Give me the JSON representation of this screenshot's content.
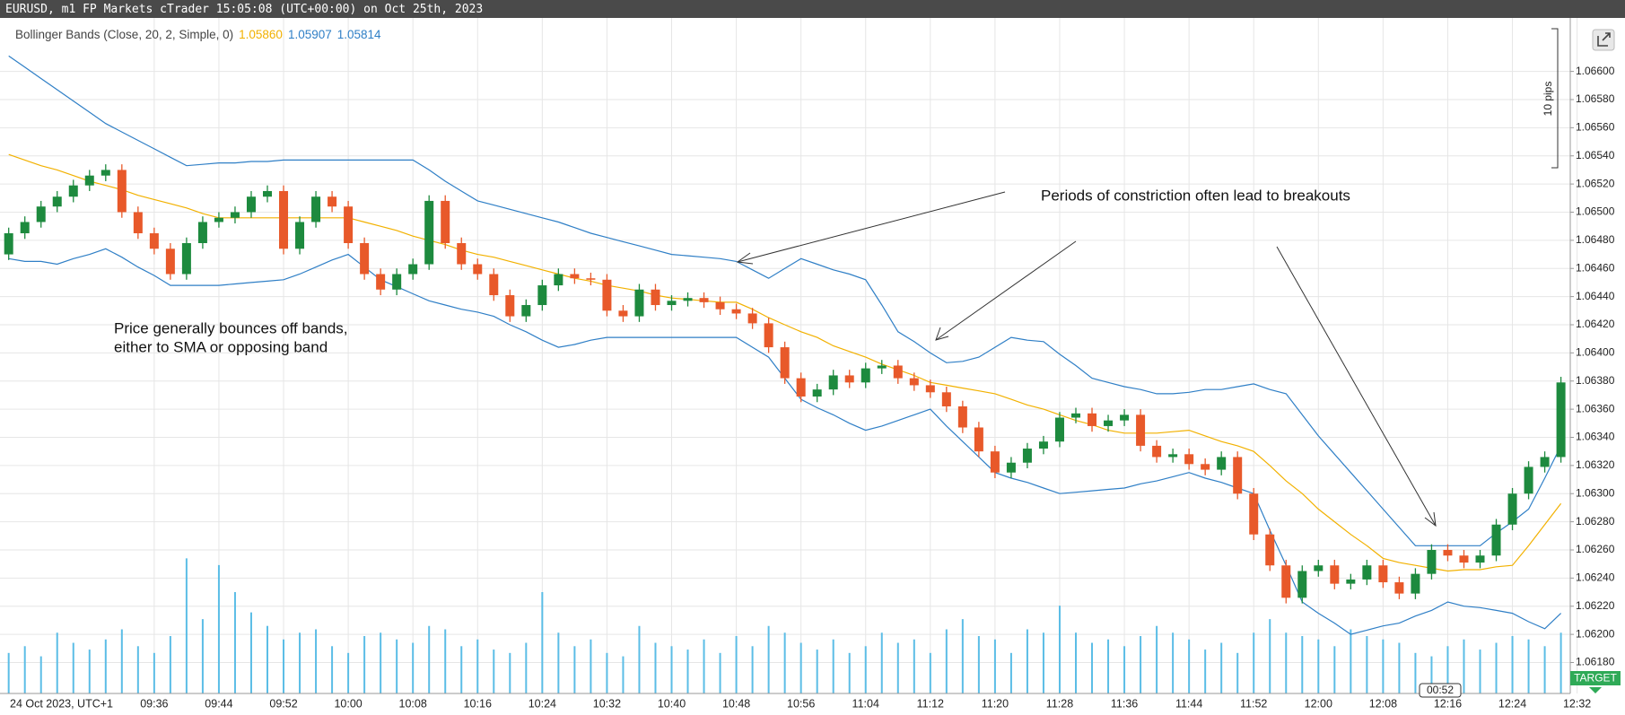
{
  "header": {
    "title": "EURUSD, m1 FP Markets cTrader 15:05:08 (UTC+00:00) on Oct 25th, 2023"
  },
  "chart_data": {
    "type": "candlestick",
    "categories": [
      null,
      null,
      null,
      null,
      null,
      "24 Oct 2023, UTC+1",
      null,
      null,
      null,
      "09:36",
      null,
      null,
      null,
      "09:44",
      null,
      null,
      null,
      "09:52",
      null,
      null,
      null,
      "10:00",
      null,
      null,
      null,
      "10:08",
      null,
      null,
      null,
      "10:16",
      null,
      null,
      null,
      "10:24",
      null,
      null,
      null,
      "10:32",
      null,
      null,
      null,
      "10:40",
      null,
      null,
      null,
      "10:48",
      null,
      null,
      null,
      "10:56",
      null,
      null,
      null,
      "11:04",
      null,
      null,
      null,
      "11:12",
      null,
      null,
      null,
      "11:20",
      null,
      null,
      null,
      "11:28",
      null,
      null,
      null,
      "11:36",
      null,
      null,
      null,
      "11:44",
      null,
      null,
      null,
      "11:52",
      null,
      null,
      null,
      "12:00",
      null,
      null,
      null,
      "12:08",
      null,
      null,
      null,
      "12:16",
      null,
      null,
      null,
      "12:24",
      null,
      null,
      null,
      "12:32"
    ],
    "open": [
      1.0647,
      1.06485,
      1.06493,
      1.06504,
      1.06511,
      1.06519,
      1.06526,
      1.0653,
      1.065,
      1.06485,
      1.06474,
      1.06456,
      1.06478,
      1.06493,
      1.06496,
      1.065,
      1.06511,
      1.06515,
      1.06474,
      1.06493,
      1.06511,
      1.06504,
      1.06478,
      1.06456,
      1.06445,
      1.06456,
      1.06463,
      1.06508,
      1.06478,
      1.06463,
      1.06456,
      1.06441,
      1.06426,
      1.06434,
      1.06448,
      1.06456,
      1.06453,
      1.06452,
      1.0643,
      1.06426,
      1.06445,
      1.06434,
      1.06437,
      1.06439,
      1.06436,
      1.06431,
      1.06428,
      1.06421,
      1.06404,
      1.06382,
      1.06369,
      1.06374,
      1.06384,
      1.06379,
      1.06389,
      1.06391,
      1.06382,
      1.06377,
      1.06372,
      1.06362,
      1.06347,
      1.0633,
      1.06315,
      1.06322,
      1.06332,
      1.06337,
      1.06354,
      1.06357,
      1.06348,
      1.06352,
      1.06356,
      1.06334,
      1.06326,
      1.06328,
      1.06321,
      1.06317,
      1.06326,
      1.063,
      1.06271,
      1.06249,
      1.06226,
      1.06245,
      1.06249,
      1.06236,
      1.06239,
      1.06249,
      1.06237,
      1.06229,
      1.06243,
      1.0626,
      1.06256,
      1.06251,
      1.06256,
      1.06278,
      1.063,
      1.06319,
      1.06326,
      null
    ],
    "high": [
      1.06489,
      1.06497,
      1.06508,
      1.06515,
      1.06523,
      1.0653,
      1.06534,
      1.06534,
      1.06504,
      1.06489,
      1.06478,
      1.06482,
      1.06497,
      1.065,
      1.06504,
      1.06515,
      1.06519,
      1.06519,
      1.06497,
      1.06515,
      1.06515,
      1.06508,
      1.06482,
      1.0646,
      1.0646,
      1.06467,
      1.06512,
      1.06512,
      1.06482,
      1.06467,
      1.0646,
      1.06445,
      1.06438,
      1.06452,
      1.0646,
      1.0646,
      1.06457,
      1.06456,
      1.06434,
      1.06449,
      1.06449,
      1.06441,
      1.06443,
      1.06443,
      1.0644,
      1.06435,
      1.06432,
      1.06425,
      1.06408,
      1.06386,
      1.06378,
      1.06388,
      1.06388,
      1.06393,
      1.06395,
      1.06395,
      1.06386,
      1.06381,
      1.06376,
      1.06366,
      1.06351,
      1.06334,
      1.06326,
      1.06336,
      1.06341,
      1.06358,
      1.06361,
      1.06361,
      1.06356,
      1.0636,
      1.0636,
      1.06338,
      1.06332,
      1.06332,
      1.06325,
      1.0633,
      1.0633,
      1.06304,
      1.06275,
      1.06253,
      1.06249,
      1.06253,
      1.06253,
      1.06243,
      1.06253,
      1.06253,
      1.06241,
      1.06247,
      1.06264,
      1.06264,
      1.0626,
      1.0626,
      1.06282,
      1.06304,
      1.06323,
      1.0633,
      1.06383,
      null
    ],
    "low": [
      1.06466,
      1.06481,
      1.06489,
      1.065,
      1.06507,
      1.06515,
      1.06522,
      1.06496,
      1.06481,
      1.0647,
      1.06452,
      1.06452,
      1.06474,
      1.06489,
      1.06492,
      1.06496,
      1.06507,
      1.0647,
      1.0647,
      1.06489,
      1.065,
      1.06474,
      1.06452,
      1.06441,
      1.06441,
      1.06452,
      1.06459,
      1.06474,
      1.06459,
      1.06452,
      1.06437,
      1.06422,
      1.06422,
      1.0643,
      1.06444,
      1.06449,
      1.06448,
      1.06426,
      1.06422,
      1.06422,
      1.0643,
      1.0643,
      1.06433,
      1.06432,
      1.06427,
      1.06424,
      1.06417,
      1.064,
      1.06378,
      1.06365,
      1.06365,
      1.0637,
      1.06375,
      1.06375,
      1.06385,
      1.06378,
      1.06373,
      1.06368,
      1.06358,
      1.06343,
      1.06326,
      1.06311,
      1.06311,
      1.06318,
      1.06328,
      1.06333,
      1.0635,
      1.06344,
      1.06344,
      1.06348,
      1.0633,
      1.06322,
      1.06322,
      1.06317,
      1.06313,
      1.06313,
      1.06296,
      1.06267,
      1.06245,
      1.06222,
      1.06222,
      1.06241,
      1.06232,
      1.06232,
      1.06235,
      1.06233,
      1.06225,
      1.06225,
      1.06239,
      1.06252,
      1.06247,
      1.06247,
      1.06252,
      1.06274,
      1.06296,
      1.06315,
      1.06322,
      null
    ],
    "close": [
      1.06485,
      1.06493,
      1.06504,
      1.06511,
      1.06519,
      1.06526,
      1.0653,
      1.065,
      1.06485,
      1.06474,
      1.06456,
      1.06478,
      1.06493,
      1.06496,
      1.065,
      1.06511,
      1.06515,
      1.06474,
      1.06493,
      1.06511,
      1.06504,
      1.06478,
      1.06456,
      1.06445,
      1.06456,
      1.06463,
      1.06508,
      1.06478,
      1.06463,
      1.06456,
      1.06441,
      1.06426,
      1.06434,
      1.06448,
      1.06456,
      1.06453,
      1.06452,
      1.0643,
      1.06426,
      1.06445,
      1.06434,
      1.06437,
      1.06439,
      1.06436,
      1.06431,
      1.06428,
      1.06421,
      1.06404,
      1.06382,
      1.06369,
      1.06374,
      1.06384,
      1.06379,
      1.06389,
      1.06391,
      1.06382,
      1.06377,
      1.06372,
      1.06362,
      1.06347,
      1.0633,
      1.06315,
      1.06322,
      1.06332,
      1.06337,
      1.06354,
      1.06357,
      1.06348,
      1.06352,
      1.06356,
      1.06334,
      1.06326,
      1.06328,
      1.06321,
      1.06317,
      1.06326,
      1.063,
      1.06271,
      1.06249,
      1.06226,
      1.06245,
      1.06249,
      1.06236,
      1.06239,
      1.06249,
      1.06237,
      1.06229,
      1.06243,
      1.0626,
      1.06256,
      1.06251,
      1.06256,
      1.06278,
      1.063,
      1.06319,
      1.06326,
      1.06379,
      null
    ],
    "up_color": "#1d8a3e",
    "down_color": "#e8592a",
    "indicator": {
      "label": "Bollinger Bands (Close, 20, 2, Simple, 0)",
      "readouts": [
        "1.05860",
        "1.05907",
        "1.05814"
      ]
    },
    "series": [
      {
        "color": "#f2b100",
        "values": [
          1.06541,
          1.06537,
          1.06533,
          1.0653,
          1.06526,
          1.06522,
          1.06519,
          1.06516,
          1.06512,
          1.06509,
          1.06506,
          1.06503,
          1.06499,
          1.06496,
          1.06496,
          1.06496,
          1.06496,
          1.06496,
          1.06496,
          1.06496,
          1.06496,
          1.06496,
          1.06493,
          1.0649,
          1.06487,
          1.06483,
          1.0648,
          1.06477,
          1.06473,
          1.0647,
          1.06468,
          1.06465,
          1.06462,
          1.06459,
          1.06456,
          1.06453,
          1.06451,
          1.06448,
          1.06446,
          1.06444,
          1.06441,
          1.06439,
          1.06438,
          1.06437,
          1.06436,
          1.06436,
          1.06431,
          1.06425,
          1.0642,
          1.06415,
          1.06411,
          1.06405,
          1.06401,
          1.06397,
          1.06392,
          1.06388,
          1.06384,
          1.06379,
          1.06377,
          1.06375,
          1.06373,
          1.06371,
          1.06367,
          1.06363,
          1.0636,
          1.06356,
          1.06352,
          1.06349,
          1.06345,
          1.06343,
          1.06343,
          1.06343,
          1.06344,
          1.06345,
          1.06341,
          1.06337,
          1.06334,
          1.0633,
          1.0632,
          1.06309,
          1.063,
          1.06289,
          1.0628,
          1.06271,
          1.06263,
          1.06254,
          1.06251,
          1.06249,
          1.06247,
          1.06245,
          1.06246,
          1.06246,
          1.06248,
          1.06249,
          1.06263,
          1.06278,
          1.06293,
          null
        ]
      },
      {
        "color": "#2f7fc6",
        "values": [
          1.06611,
          1.06603,
          1.06595,
          1.06587,
          1.06579,
          1.06571,
          1.06563,
          1.06557,
          1.06551,
          1.06545,
          1.06539,
          1.06533,
          1.06534,
          1.06535,
          1.06535,
          1.06536,
          1.06536,
          1.06537,
          1.06537,
          1.06537,
          1.06537,
          1.06537,
          1.06537,
          1.06537,
          1.06537,
          1.06537,
          1.0653,
          1.06522,
          1.06515,
          1.06508,
          1.06505,
          1.06502,
          1.06499,
          1.06496,
          1.06493,
          1.06489,
          1.06485,
          1.06482,
          1.06479,
          1.06476,
          1.06473,
          1.0647,
          1.06469,
          1.06468,
          1.06467,
          1.06465,
          1.06459,
          1.06453,
          1.0646,
          1.06467,
          1.06463,
          1.06459,
          1.06456,
          1.06452,
          1.06434,
          1.06415,
          1.06408,
          1.064,
          1.06393,
          1.06394,
          1.06397,
          1.06404,
          1.06411,
          1.06409,
          1.06408,
          1.06399,
          1.06391,
          1.06382,
          1.06379,
          1.06376,
          1.06374,
          1.06371,
          1.06371,
          1.06372,
          1.06374,
          1.06374,
          1.06376,
          1.06378,
          1.06374,
          1.06371,
          1.06356,
          1.06341,
          1.06328,
          1.06315,
          1.06302,
          1.06289,
          1.06276,
          1.06263,
          1.06263,
          1.06263,
          1.06263,
          1.06263,
          1.06272,
          1.0628,
          1.06289,
          1.06311,
          1.06334,
          null
        ]
      },
      {
        "color": "#2f7fc6",
        "values": [
          1.06467,
          1.06465,
          1.06465,
          1.06463,
          1.06467,
          1.0647,
          1.06474,
          1.06468,
          1.06461,
          1.06455,
          1.06448,
          1.06448,
          1.06448,
          1.06448,
          1.06449,
          1.0645,
          1.06451,
          1.06452,
          1.06456,
          1.06461,
          1.06466,
          1.0647,
          1.06461,
          1.06452,
          1.06447,
          1.06442,
          1.06437,
          1.06434,
          1.06431,
          1.06429,
          1.06426,
          1.0642,
          1.06415,
          1.06409,
          1.06404,
          1.06406,
          1.06409,
          1.06411,
          1.06411,
          1.06411,
          1.06411,
          1.06411,
          1.06411,
          1.06411,
          1.06411,
          1.06411,
          1.06404,
          1.06397,
          1.06382,
          1.06367,
          1.06361,
          1.06356,
          1.0635,
          1.06345,
          1.06348,
          1.06352,
          1.06356,
          1.0636,
          1.06348,
          1.06337,
          1.06326,
          1.06315,
          1.06311,
          1.06308,
          1.06304,
          1.063,
          1.06301,
          1.06302,
          1.06303,
          1.06304,
          1.06307,
          1.06309,
          1.06312,
          1.06315,
          1.06311,
          1.06308,
          1.06304,
          1.063,
          1.06274,
          1.06249,
          1.06223,
          1.06215,
          1.06208,
          1.062,
          1.06203,
          1.06206,
          1.06208,
          1.06213,
          1.06217,
          1.06223,
          1.0622,
          1.06219,
          1.06217,
          1.06215,
          1.06209,
          1.06204,
          1.06215,
          null
        ]
      }
    ],
    "volume": {
      "color": "#5bbde6",
      "axis": "y2",
      "values": [
        60,
        70,
        55,
        90,
        75,
        65,
        80,
        95,
        70,
        60,
        85,
        200,
        110,
        190,
        150,
        120,
        100,
        80,
        90,
        95,
        70,
        60,
        85,
        90,
        80,
        75,
        100,
        95,
        70,
        80,
        65,
        60,
        75,
        150,
        90,
        70,
        80,
        60,
        55,
        100,
        75,
        70,
        65,
        80,
        60,
        85,
        70,
        100,
        90,
        75,
        65,
        80,
        60,
        70,
        90,
        75,
        80,
        60,
        95,
        110,
        85,
        80,
        60,
        95,
        90,
        130,
        90,
        75,
        80,
        70,
        85,
        100,
        90,
        80,
        65,
        75,
        60,
        90,
        110,
        90,
        85,
        80,
        70,
        95,
        85,
        80,
        75,
        60,
        55,
        70,
        80,
        65,
        75,
        85,
        80,
        70,
        90,
        null
      ]
    },
    "ylim": [
      1.06158,
      1.06638
    ],
    "yticks": [
      {
        "value": 1.0618,
        "label": "1.06180"
      },
      {
        "value": 1.062,
        "label": "1.06200"
      },
      {
        "value": 1.0622,
        "label": "1.06220"
      },
      {
        "value": 1.0624,
        "label": "1.06240"
      },
      {
        "value": 1.0626,
        "label": "1.06260"
      },
      {
        "value": 1.0628,
        "label": "1.06280"
      },
      {
        "value": 1.063,
        "label": "1.06300"
      },
      {
        "value": 1.0632,
        "label": "1.06320"
      },
      {
        "value": 1.0634,
        "label": "1.06340"
      },
      {
        "value": 1.0636,
        "label": "1.06360"
      },
      {
        "value": 1.0638,
        "label": "1.06380"
      },
      {
        "value": 1.064,
        "label": "1.06400"
      },
      {
        "value": 1.0642,
        "label": "1.06420"
      },
      {
        "value": 1.0644,
        "label": "1.06440"
      },
      {
        "value": 1.0646,
        "label": "1.06460"
      },
      {
        "value": 1.0648,
        "label": "1.06480"
      },
      {
        "value": 1.065,
        "label": "1.06500"
      },
      {
        "value": 1.0652,
        "label": "1.06520"
      },
      {
        "value": 1.0654,
        "label": "1.06540"
      },
      {
        "value": 1.0656,
        "label": "1.06560"
      },
      {
        "value": 1.0658,
        "label": "1.06580"
      },
      {
        "value": 1.066,
        "label": "1.06600"
      }
    ],
    "y2lim": [
      0,
      1000
    ],
    "grid": true,
    "annotations": [
      [
        "Price generally bounces off bands,",
        "either to SMA or opposing band"
      ],
      [
        "Periods of constriction often lead to breakouts"
      ]
    ]
  },
  "ruler": {
    "label": "10 pips"
  },
  "countdown": "00:52",
  "button": "TARGET"
}
